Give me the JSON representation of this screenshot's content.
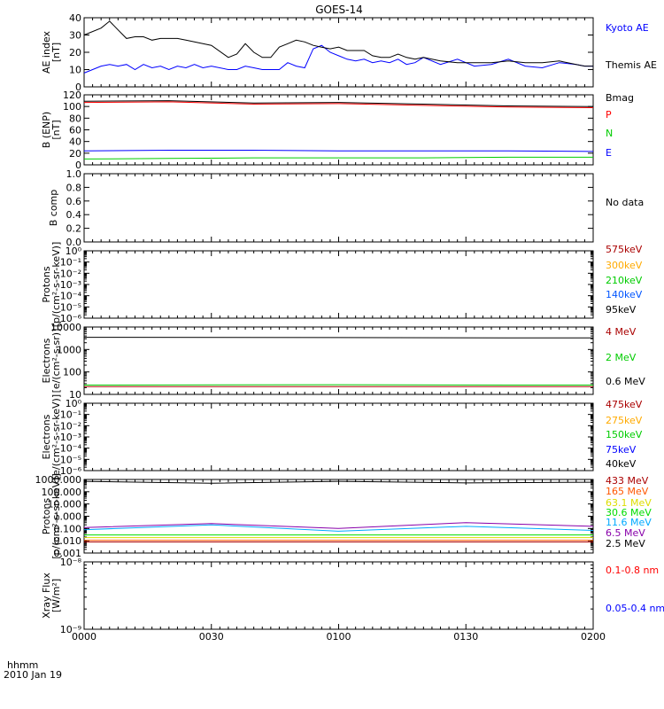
{
  "title": "GOES-14",
  "time_label": "hhmm",
  "date_label": "2010 Jan 19",
  "x_ticks": [
    "0000",
    "0030",
    "0100",
    "0130",
    "0200"
  ],
  "chart_data": [
    {
      "type": "line",
      "ylabel": [
        "AE index",
        "[nT]"
      ],
      "ylim": [
        0,
        40
      ],
      "yticks": [
        "0",
        "10",
        "20",
        "30",
        "40"
      ],
      "x": [
        0,
        4,
        6,
        8,
        10,
        12,
        14,
        16,
        18,
        20,
        22,
        24,
        26,
        28,
        30,
        34,
        36,
        38,
        40,
        42,
        44,
        46,
        48,
        50,
        52,
        54,
        56,
        58,
        60,
        62,
        64,
        66,
        68,
        70,
        72,
        74,
        76,
        78,
        80,
        84,
        88,
        92,
        96,
        100,
        104,
        108,
        112,
        116,
        118,
        120
      ],
      "series": [
        {
          "name": "Kyoto AE",
          "color": "#0000ff",
          "values": [
            8,
            12,
            13,
            12,
            13,
            10,
            13,
            11,
            12,
            10,
            12,
            11,
            13,
            11,
            12,
            10,
            10,
            12,
            11,
            10,
            10,
            10,
            14,
            12,
            11,
            22,
            24,
            20,
            18,
            16,
            15,
            16,
            14,
            15,
            14,
            16,
            13,
            14,
            17,
            13,
            16,
            12,
            13,
            16,
            12,
            11,
            14,
            13,
            12,
            12
          ]
        },
        {
          "name": "Themis AE",
          "color": "#000000",
          "values": [
            30,
            34,
            38,
            33,
            28,
            29,
            29,
            27,
            28,
            28,
            28,
            27,
            26,
            25,
            24,
            17,
            19,
            25,
            20,
            17,
            17,
            23,
            25,
            27,
            26,
            24,
            23,
            22,
            23,
            21,
            21,
            21,
            18,
            17,
            17,
            19,
            17,
            16,
            17,
            15,
            14,
            14,
            14,
            15,
            14,
            14,
            15,
            13,
            12,
            12
          ]
        }
      ]
    },
    {
      "type": "line",
      "ylabel": [
        "B (ENP)",
        "[nT]"
      ],
      "ylim": [
        0,
        120
      ],
      "yticks": [
        "0",
        "20",
        "40",
        "60",
        "80",
        "100",
        "120"
      ],
      "x": [
        0,
        20,
        40,
        60,
        80,
        100,
        120
      ],
      "series": [
        {
          "name": "Bmag",
          "color": "#000000",
          "values": [
            109,
            110,
            106,
            107,
            104,
            101,
            100
          ]
        },
        {
          "name": "P",
          "color": "#ff0000",
          "values": [
            107,
            108,
            104,
            105,
            102,
            99,
            98
          ]
        },
        {
          "name": "N",
          "color": "#00cc00",
          "values": [
            10,
            11,
            12,
            12,
            12,
            13,
            13
          ]
        },
        {
          "name": "E",
          "color": "#0000ff",
          "values": [
            24,
            25,
            25,
            24,
            24,
            24,
            23
          ]
        }
      ]
    },
    {
      "type": "line",
      "ylabel": [
        "B comp"
      ],
      "ylim": [
        0,
        1
      ],
      "yticks": [
        "0.0",
        "0.2",
        "0.4",
        "0.6",
        "0.8",
        "1.0"
      ],
      "series": [],
      "annotation": "No data"
    },
    {
      "type": "line",
      "log_scale": true,
      "ylabel": [
        "Protons",
        "[p/(cm²-s-sr-keV)]"
      ],
      "ylim": [
        1e-06,
        1
      ],
      "yticks": [
        "10⁻⁶",
        "10⁻⁵",
        "10⁻⁴",
        "10⁻³",
        "10⁻²",
        "10⁻¹",
        "10⁰"
      ],
      "series": [
        {
          "name": "575keV",
          "color": "#aa0000",
          "values": []
        },
        {
          "name": "300keV",
          "color": "#ffaa00",
          "values": []
        },
        {
          "name": "210keV",
          "color": "#00cc00",
          "values": []
        },
        {
          "name": "140keV",
          "color": "#0055ff",
          "values": []
        },
        {
          "name": "95keV",
          "color": "#000000",
          "values": []
        }
      ]
    },
    {
      "type": "line",
      "log_scale": true,
      "ylabel": [
        "Electrons",
        "[e/(cm²-s-sr)]"
      ],
      "ylim": [
        10,
        10000
      ],
      "yticks": [
        "10",
        "100",
        "1000",
        "10000"
      ],
      "x": [
        0,
        60,
        100,
        120
      ],
      "series": [
        {
          "name": "4 MeV",
          "color": "#aa0000",
          "values": [
            22,
            22,
            22,
            22
          ]
        },
        {
          "name": "2 MeV",
          "color": "#00cc00",
          "values": [
            26,
            27,
            26,
            26
          ]
        },
        {
          "name": "0.6 MeV",
          "color": "#000000",
          "values": [
            3500,
            3400,
            3300,
            3300
          ]
        }
      ]
    },
    {
      "type": "line",
      "log_scale": true,
      "ylabel": [
        "Electrons",
        "[e/(cm²-s-sr-keV)]"
      ],
      "ylim": [
        1e-06,
        1
      ],
      "yticks": [
        "10⁻⁶",
        "10⁻⁵",
        "10⁻⁴",
        "10⁻³",
        "10⁻²",
        "10⁻¹",
        "10⁰"
      ],
      "series": [
        {
          "name": "475keV",
          "color": "#aa0000",
          "values": []
        },
        {
          "name": "275keV",
          "color": "#ffaa00",
          "values": []
        },
        {
          "name": "150keV",
          "color": "#00cc00",
          "values": []
        },
        {
          "name": "75keV",
          "color": "#0000ff",
          "values": []
        },
        {
          "name": "40keV",
          "color": "#000000",
          "values": []
        }
      ]
    },
    {
      "type": "line",
      "log_scale": true,
      "ylabel": [
        "Protons",
        "[p/(cm²-s-sr-keV)]"
      ],
      "ylim": [
        0.001,
        1000
      ],
      "yticks": [
        "0.001",
        "0.010",
        "0.100",
        "1.000",
        "10.000",
        "100.000",
        "1000.000"
      ],
      "x": [
        0,
        30,
        60,
        90,
        120
      ],
      "series": [
        {
          "name": "433 MeV",
          "color": "#aa0000",
          "values": [
            0.008,
            0.008,
            0.008,
            0.008,
            0.008
          ]
        },
        {
          "name": "165 MeV",
          "color": "#ff5500",
          "values": [
            0.011,
            0.011,
            0.011,
            0.011,
            0.011
          ]
        },
        {
          "name": "63.1 MeV",
          "color": "#dddd00",
          "values": [
            0.018,
            0.018,
            0.018,
            0.018,
            0.018
          ]
        },
        {
          "name": "30.6 MeV",
          "color": "#00dd00",
          "values": [
            0.03,
            0.03,
            0.03,
            0.03,
            0.03
          ]
        },
        {
          "name": "11.6 MeV",
          "color": "#00aaff",
          "values": [
            0.08,
            0.2,
            0.06,
            0.15,
            0.07
          ]
        },
        {
          "name": "6.5 MeV",
          "color": "#8800aa",
          "values": [
            0.12,
            0.25,
            0.1,
            0.3,
            0.15
          ]
        },
        {
          "name": "2.5 MeV",
          "color": "#000000",
          "values": [
            700,
            500,
            700,
            520,
            600
          ]
        }
      ]
    },
    {
      "type": "line",
      "log_scale": true,
      "ylabel": [
        "Xray Flux",
        "[W/m²]"
      ],
      "ylim": [
        1e-09,
        1e-08
      ],
      "yticks": [
        "10⁻⁹",
        "10⁻⁸"
      ],
      "series": [
        {
          "name": "0.1-0.8 nm",
          "color": "#ff0000",
          "values": []
        },
        {
          "name": "0.05-0.4 nm",
          "color": "#0000ff",
          "values": []
        }
      ]
    }
  ]
}
